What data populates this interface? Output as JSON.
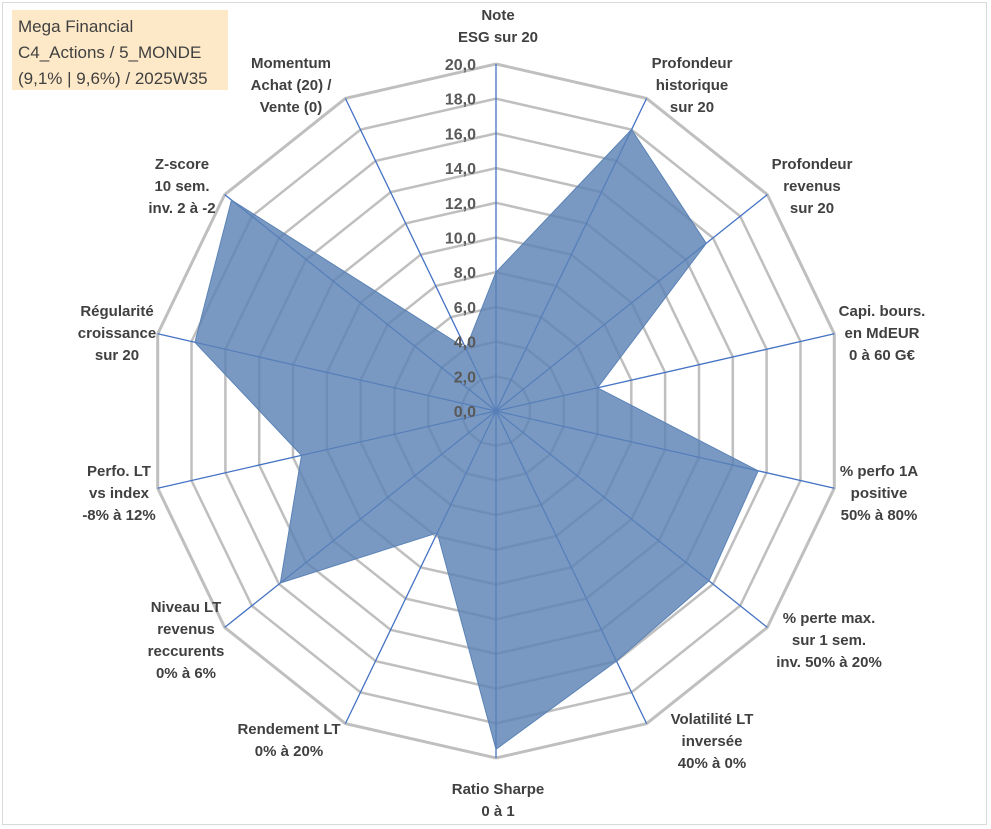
{
  "title_box": {
    "line1": "Mega Financial",
    "line2": "C4_Actions / 5_MONDE",
    "line3": "(9,1% | 9,6%) / 2025W35"
  },
  "colors": {
    "grid": "#bfbfbf",
    "spoke": "#4472c4",
    "fill": "#5b83b6",
    "fill_opacity": "0.82",
    "title_bg": "#fde9c8"
  },
  "chart_data": {
    "type": "radar",
    "range": [
      0,
      20
    ],
    "ticks": [
      "0,0",
      "2,0",
      "4,0",
      "6,0",
      "8,0",
      "10,0",
      "12,0",
      "14,0",
      "16,0",
      "18,0",
      "20,0"
    ],
    "grid": true,
    "legend": "none",
    "axes": [
      {
        "label": [
          "Note",
          "ESG sur 20"
        ],
        "value": 8.0
      },
      {
        "label": [
          "Profondeur",
          "historique",
          "sur 20"
        ],
        "value": 18.0
      },
      {
        "label": [
          "Profondeur",
          "revenus",
          "sur 20"
        ],
        "value": 15.5
      },
      {
        "label": [
          "Capi. bours.",
          "en MdEUR",
          "0 à 60 G€"
        ],
        "value": 6.0
      },
      {
        "label": [
          "% perfo 1A",
          "positive",
          "50% à 80%"
        ],
        "value": 15.5
      },
      {
        "label": [
          "% perte max.",
          "sur 1 sem.",
          "inv. 50% à 20%"
        ],
        "value": 15.7
      },
      {
        "label": [
          "Volatilité LT",
          "inversée",
          "40% à 0%"
        ],
        "value": 16.0
      },
      {
        "label": [
          "Ratio Sharpe",
          "0 à 1"
        ],
        "value": 19.5
      },
      {
        "label": [
          "Rendement LT",
          "0% à 20%"
        ],
        "value": 7.8
      },
      {
        "label": [
          "Niveau LT",
          "revenus",
          "reccurents",
          "0% à 6%"
        ],
        "value": 15.9
      },
      {
        "label": [
          "Perfo. LT",
          "vs index",
          "-8% à 12%"
        ],
        "value": 11.5
      },
      {
        "label": [
          "Régularité",
          "croissance",
          "sur 20"
        ],
        "value": 17.8
      },
      {
        "label": [
          "Z-score",
          "10 sem.",
          "inv. 2 à -2"
        ],
        "value": 19.5
      },
      {
        "label": [
          "Momentum",
          "Achat (20) /",
          "Vente (0)"
        ],
        "value": 4.0
      }
    ]
  }
}
